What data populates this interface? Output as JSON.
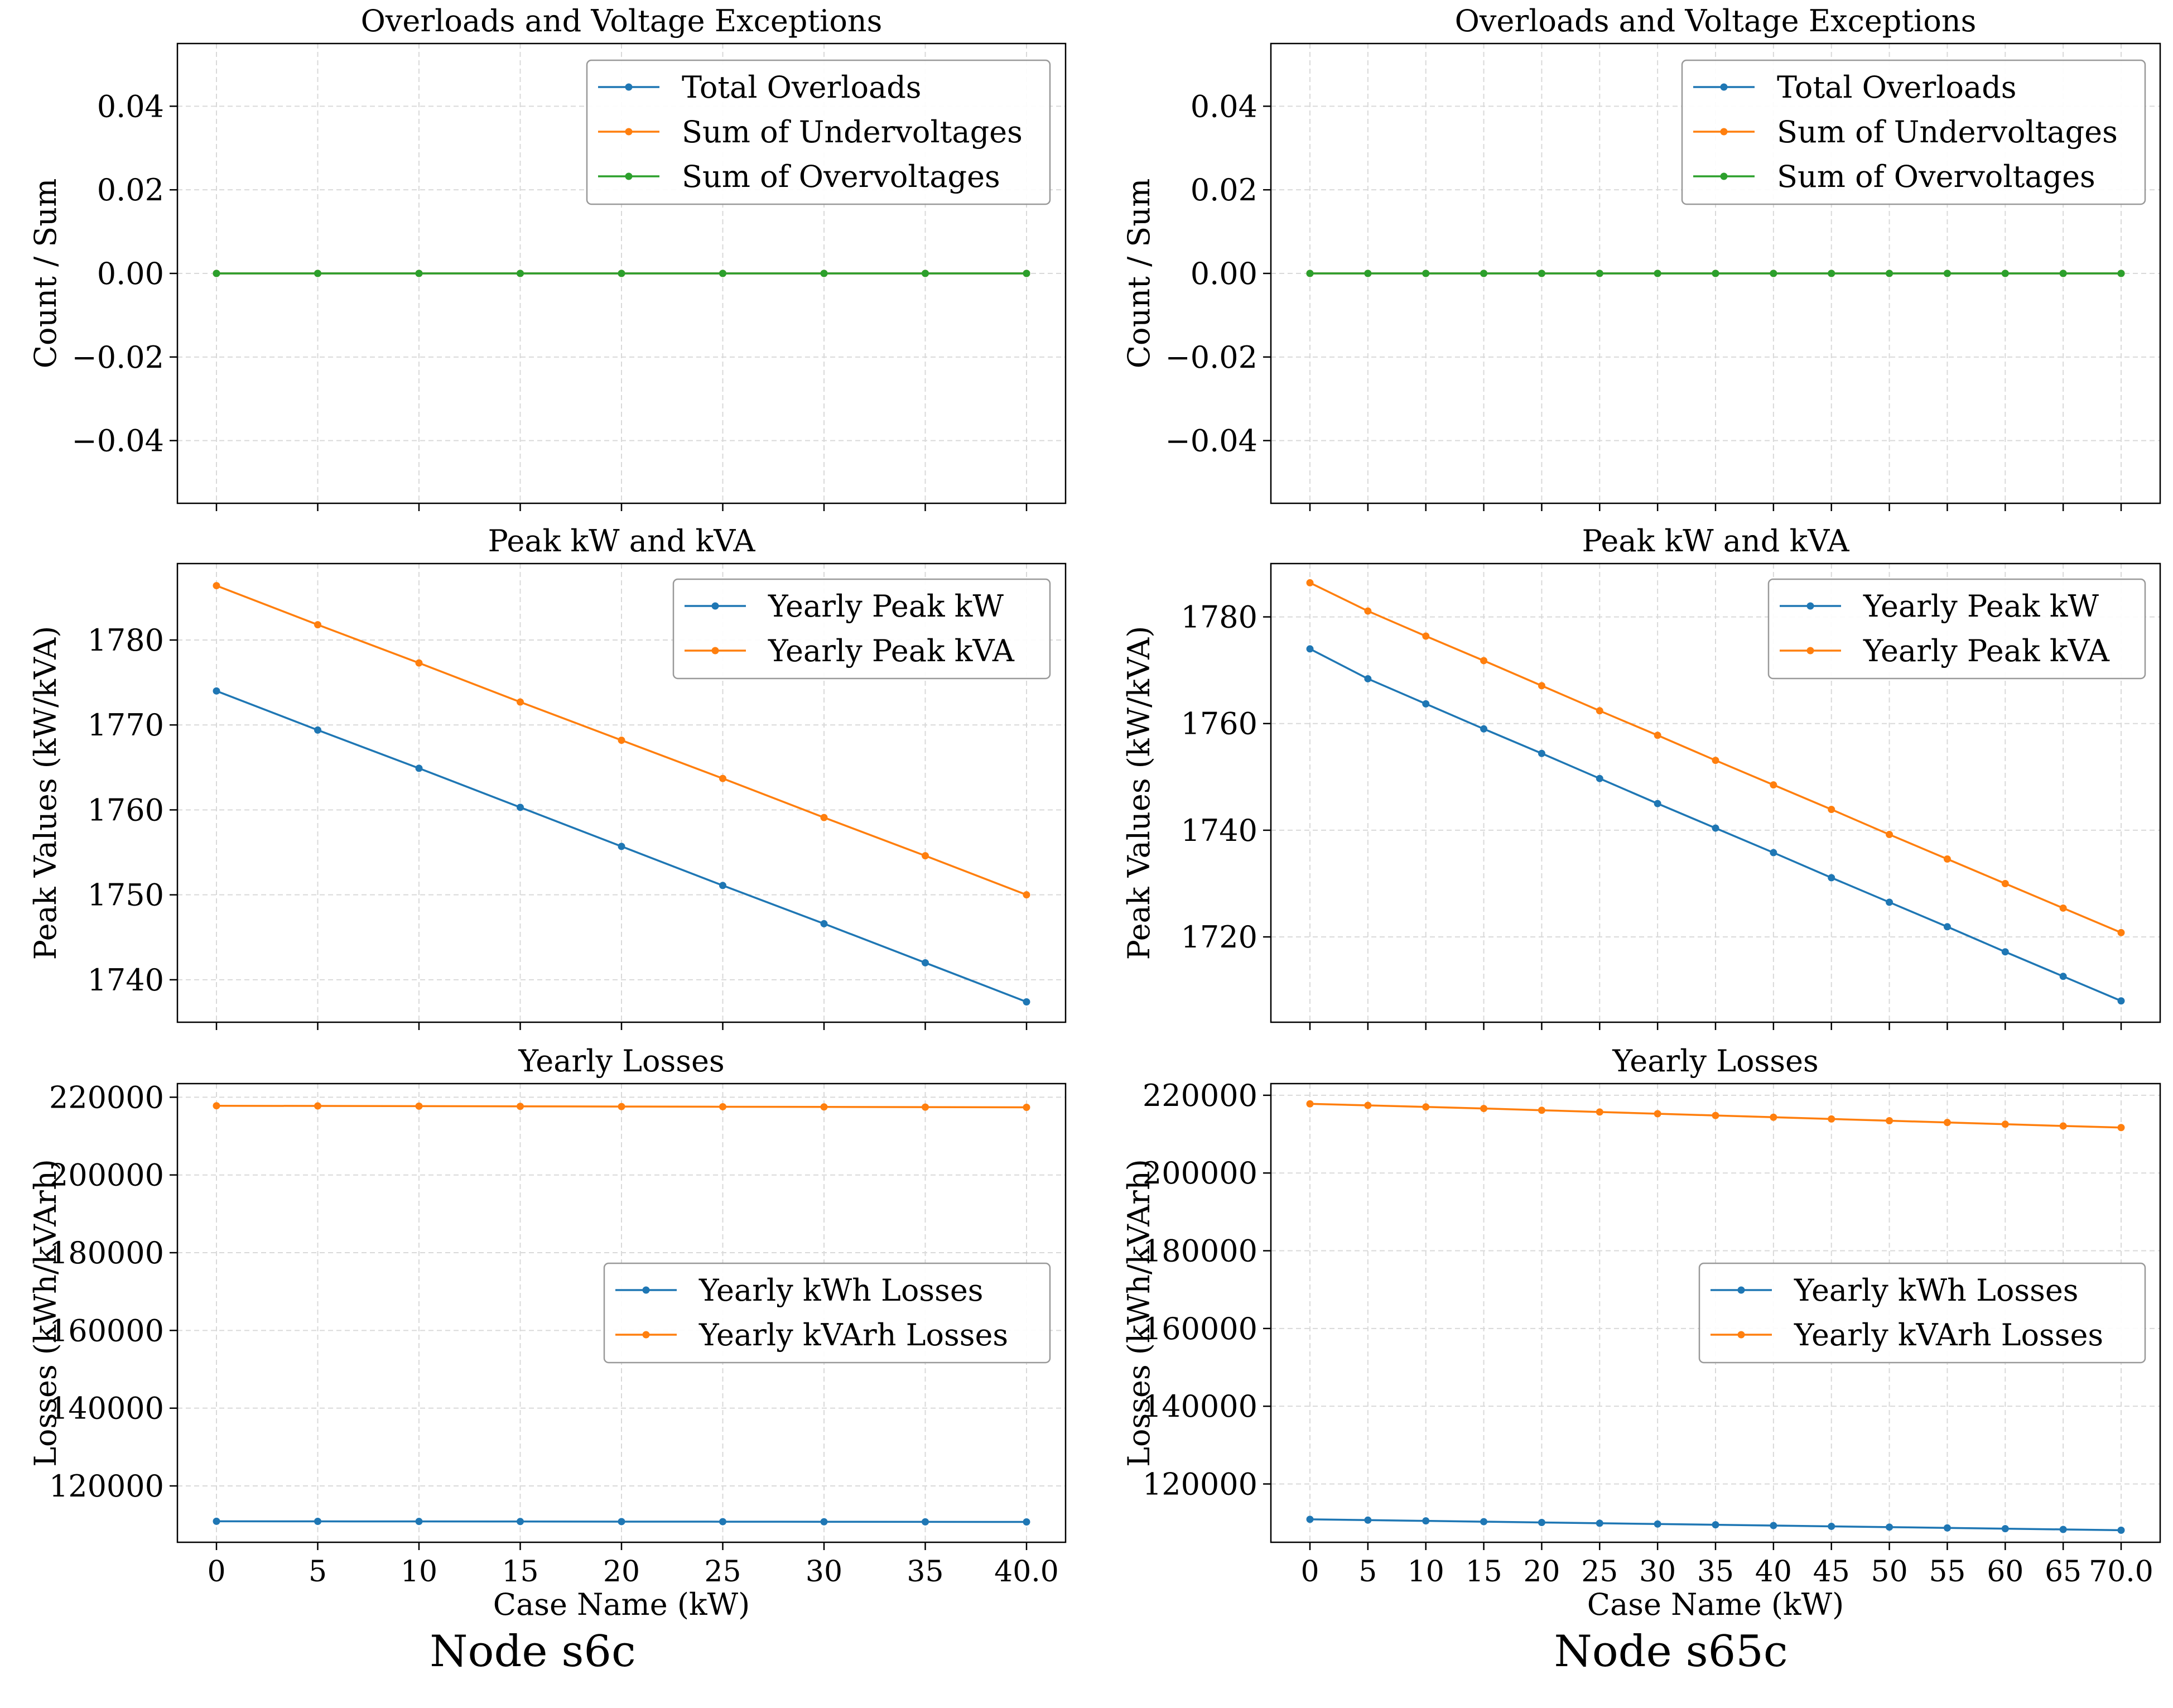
{
  "colors": {
    "blue": "#1f77b4",
    "orange": "#ff7f0e",
    "green": "#2ca02c"
  },
  "captions": {
    "left": "Node s6c",
    "right": "Node s65c"
  },
  "chart_data": [
    {
      "id": "left-overloads",
      "type": "line",
      "title": "Overloads and Voltage Exceptions",
      "xlabel": "",
      "ylabel": "Count / Sum",
      "x": [
        0,
        5,
        10,
        15,
        20,
        25,
        30,
        35,
        40
      ],
      "xticks": [],
      "ylim": [
        -0.055,
        0.055
      ],
      "yticks": [
        0.04,
        0.02,
        0.0,
        -0.02,
        -0.04
      ],
      "ytick_labels": [
        "0.04",
        "0.02",
        "0.00",
        "−0.02",
        "−0.04"
      ],
      "legend": "upper-right",
      "grid": true,
      "series": [
        {
          "name": "Total Overloads",
          "color": "blue",
          "values": [
            0,
            0,
            0,
            0,
            0,
            0,
            0,
            0,
            0
          ]
        },
        {
          "name": "Sum of Undervoltages",
          "color": "orange",
          "values": [
            0,
            0,
            0,
            0,
            0,
            0,
            0,
            0,
            0
          ]
        },
        {
          "name": "Sum of Overvoltages",
          "color": "green",
          "values": [
            0,
            0,
            0,
            0,
            0,
            0,
            0,
            0,
            0
          ]
        }
      ]
    },
    {
      "id": "right-overloads",
      "type": "line",
      "title": "Overloads and Voltage Exceptions",
      "xlabel": "",
      "ylabel": "Count / Sum",
      "x": [
        0,
        5,
        10,
        15,
        20,
        25,
        30,
        35,
        40,
        45,
        50,
        55,
        60,
        65,
        70
      ],
      "xticks": [],
      "ylim": [
        -0.055,
        0.055
      ],
      "yticks": [
        0.04,
        0.02,
        0.0,
        -0.02,
        -0.04
      ],
      "ytick_labels": [
        "0.04",
        "0.02",
        "0.00",
        "−0.02",
        "−0.04"
      ],
      "legend": "upper-right",
      "grid": true,
      "series": [
        {
          "name": "Total Overloads",
          "color": "blue",
          "values": [
            0,
            0,
            0,
            0,
            0,
            0,
            0,
            0,
            0,
            0,
            0,
            0,
            0,
            0,
            0
          ]
        },
        {
          "name": "Sum of Undervoltages",
          "color": "orange",
          "values": [
            0,
            0,
            0,
            0,
            0,
            0,
            0,
            0,
            0,
            0,
            0,
            0,
            0,
            0,
            0
          ]
        },
        {
          "name": "Sum of Overvoltages",
          "color": "green",
          "values": [
            0,
            0,
            0,
            0,
            0,
            0,
            0,
            0,
            0,
            0,
            0,
            0,
            0,
            0,
            0
          ]
        }
      ]
    },
    {
      "id": "left-peak",
      "type": "line",
      "title": "Peak kW and kVA",
      "xlabel": "",
      "ylabel": "Peak Values (kW/kVA)",
      "x": [
        0,
        5,
        10,
        15,
        20,
        25,
        30,
        35,
        40
      ],
      "xticks": [],
      "ylim": [
        1735,
        1789
      ],
      "yticks": [
        1780,
        1770,
        1760,
        1750,
        1740
      ],
      "ytick_labels": [
        "1780",
        "1770",
        "1760",
        "1750",
        "1740"
      ],
      "legend": "upper-right",
      "grid": true,
      "series": [
        {
          "name": "Yearly Peak kW",
          "color": "blue",
          "values": [
            1774.0,
            1769.4,
            1764.9,
            1760.3,
            1755.7,
            1751.1,
            1746.6,
            1742.0,
            1737.4
          ]
        },
        {
          "name": "Yearly Peak kVA",
          "color": "orange",
          "values": [
            1786.4,
            1781.8,
            1777.3,
            1772.7,
            1768.2,
            1763.7,
            1759.1,
            1754.6,
            1750.0
          ]
        }
      ]
    },
    {
      "id": "right-peak",
      "type": "line",
      "title": "Peak kW and kVA",
      "xlabel": "",
      "ylabel": "Peak Values (kW/kVA)",
      "x": [
        0,
        5,
        10,
        15,
        20,
        25,
        30,
        35,
        40,
        45,
        50,
        55,
        60,
        65,
        70
      ],
      "xticks": [],
      "ylim": [
        1704,
        1790
      ],
      "yticks": [
        1780,
        1760,
        1740,
        1720
      ],
      "ytick_labels": [
        "1780",
        "1760",
        "1740",
        "1720"
      ],
      "legend": "upper-right",
      "grid": true,
      "series": [
        {
          "name": "Yearly Peak kW",
          "color": "blue",
          "values": [
            1774.0,
            1768.4,
            1763.7,
            1759.0,
            1754.4,
            1749.7,
            1745.0,
            1740.4,
            1735.8,
            1731.1,
            1726.5,
            1721.9,
            1717.2,
            1712.6,
            1708.0
          ]
        },
        {
          "name": "Yearly Peak kVA",
          "color": "orange",
          "values": [
            1786.4,
            1781.1,
            1776.4,
            1771.8,
            1767.1,
            1762.4,
            1757.8,
            1753.1,
            1748.5,
            1743.9,
            1739.2,
            1734.6,
            1730.0,
            1725.4,
            1720.8
          ]
        }
      ]
    },
    {
      "id": "left-losses",
      "type": "line",
      "title": "Yearly Losses",
      "xlabel": "Case Name (kW)",
      "ylabel": "Losses (kWh/kVArh)",
      "x": [
        0,
        5,
        10,
        15,
        20,
        25,
        30,
        35,
        40
      ],
      "xticks": [
        0,
        5,
        10,
        15,
        20,
        25,
        30,
        35,
        40
      ],
      "xtick_labels": [
        "0",
        "5",
        "10",
        "15",
        "20",
        "25",
        "30",
        "35",
        "40.0"
      ],
      "ylim": [
        105500,
        223500
      ],
      "yticks": [
        220000,
        200000,
        180000,
        160000,
        140000,
        120000
      ],
      "ytick_labels": [
        "220000",
        "200000",
        "180000",
        "160000",
        "140000",
        "120000"
      ],
      "legend": "center-right",
      "grid": true,
      "series": [
        {
          "name": "Yearly kWh Losses",
          "color": "blue",
          "values": [
            110900,
            110880,
            110860,
            110840,
            110820,
            110800,
            110780,
            110760,
            110740
          ]
        },
        {
          "name": "Yearly kVArh Losses",
          "color": "orange",
          "values": [
            217800,
            217750,
            217700,
            217650,
            217600,
            217550,
            217500,
            217450,
            217400
          ]
        }
      ]
    },
    {
      "id": "right-losses",
      "type": "line",
      "title": "Yearly Losses",
      "xlabel": "Case Name (kW)",
      "ylabel": "Losses (kWh/kVArh)",
      "x": [
        0,
        5,
        10,
        15,
        20,
        25,
        30,
        35,
        40,
        45,
        50,
        55,
        60,
        65,
        70
      ],
      "xticks": [
        0,
        5,
        10,
        15,
        20,
        25,
        30,
        35,
        40,
        45,
        50,
        55,
        60,
        65,
        70
      ],
      "xtick_labels": [
        "0",
        "5",
        "10",
        "15",
        "20",
        "25",
        "30",
        "35",
        "40",
        "45",
        "50",
        "55",
        "60",
        "65",
        "70.0"
      ],
      "ylim": [
        105000,
        223000
      ],
      "yticks": [
        220000,
        200000,
        180000,
        160000,
        140000,
        120000
      ],
      "ytick_labels": [
        "220000",
        "200000",
        "180000",
        "160000",
        "140000",
        "120000"
      ],
      "legend": "center-right",
      "grid": true,
      "series": [
        {
          "name": "Yearly kWh Losses",
          "color": "blue",
          "values": [
            110900,
            110700,
            110500,
            110300,
            110100,
            109900,
            109700,
            109500,
            109300,
            109100,
            108900,
            108700,
            108500,
            108300,
            108100
          ]
        },
        {
          "name": "Yearly kVArh Losses",
          "color": "orange",
          "values": [
            217800,
            217400,
            217000,
            216600,
            216150,
            215700,
            215250,
            214800,
            214350,
            213900,
            213450,
            213000,
            212550,
            212100,
            211700
          ]
        }
      ]
    }
  ]
}
